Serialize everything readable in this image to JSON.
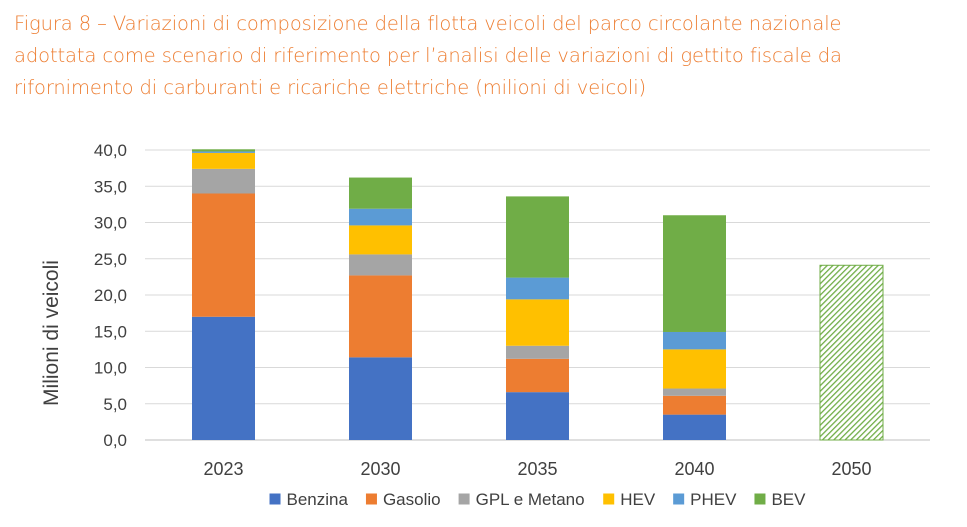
{
  "title_lines": [
    "Figura 8 – Variazioni di composizione della flotta veicoli del parco circolante nazionale",
    "adottata come scenario di riferimento per l’analisi delle variazioni di gettito fiscale da",
    "rifornimento di carburanti e ricariche elettriche (milioni di veicoli)"
  ],
  "chart_data": {
    "type": "bar",
    "stacked": true,
    "title": "Figura 8 – Variazioni di composizione della flotta veicoli del parco circolante nazionale adottata come scenario di riferimento per l’analisi delle variazioni di gettito fiscale da rifornimento di carburanti e ricariche elettriche (milioni di veicoli)",
    "xlabel": "",
    "ylabel": "Milioni di veicoli",
    "ylim": [
      0,
      40
    ],
    "yticks": [
      "0,0",
      "5,0",
      "10,0",
      "15,0",
      "20,0",
      "25,0",
      "30,0",
      "35,0",
      "40,0"
    ],
    "grid": true,
    "legend_position": "bottom",
    "categories": [
      "2023",
      "2030",
      "2035",
      "2040",
      "2050"
    ],
    "series": [
      {
        "name": "Benzina",
        "color": "#4472C4",
        "values": [
          17.0,
          11.4,
          6.6,
          3.5,
          null
        ]
      },
      {
        "name": "Gasolio",
        "color": "#ED7D31",
        "values": [
          17.0,
          11.3,
          4.6,
          2.6,
          null
        ]
      },
      {
        "name": "GPL e Metano",
        "color": "#A5A5A5",
        "values": [
          3.4,
          2.9,
          1.8,
          1.0,
          null
        ]
      },
      {
        "name": "HEV",
        "color": "#FFC000",
        "values": [
          2.2,
          4.0,
          6.4,
          5.4,
          null
        ]
      },
      {
        "name": "PHEV",
        "color": "#5B9BD5",
        "values": [
          0.2,
          2.3,
          3.0,
          2.4,
          null
        ]
      },
      {
        "name": "BEV",
        "color": "#70AD47",
        "values": [
          0.3,
          4.3,
          11.2,
          16.1,
          null
        ]
      }
    ],
    "unspecified_total": {
      "category": "2050",
      "value": 24.1,
      "color": "#70AD47",
      "pattern": "hatched"
    }
  }
}
